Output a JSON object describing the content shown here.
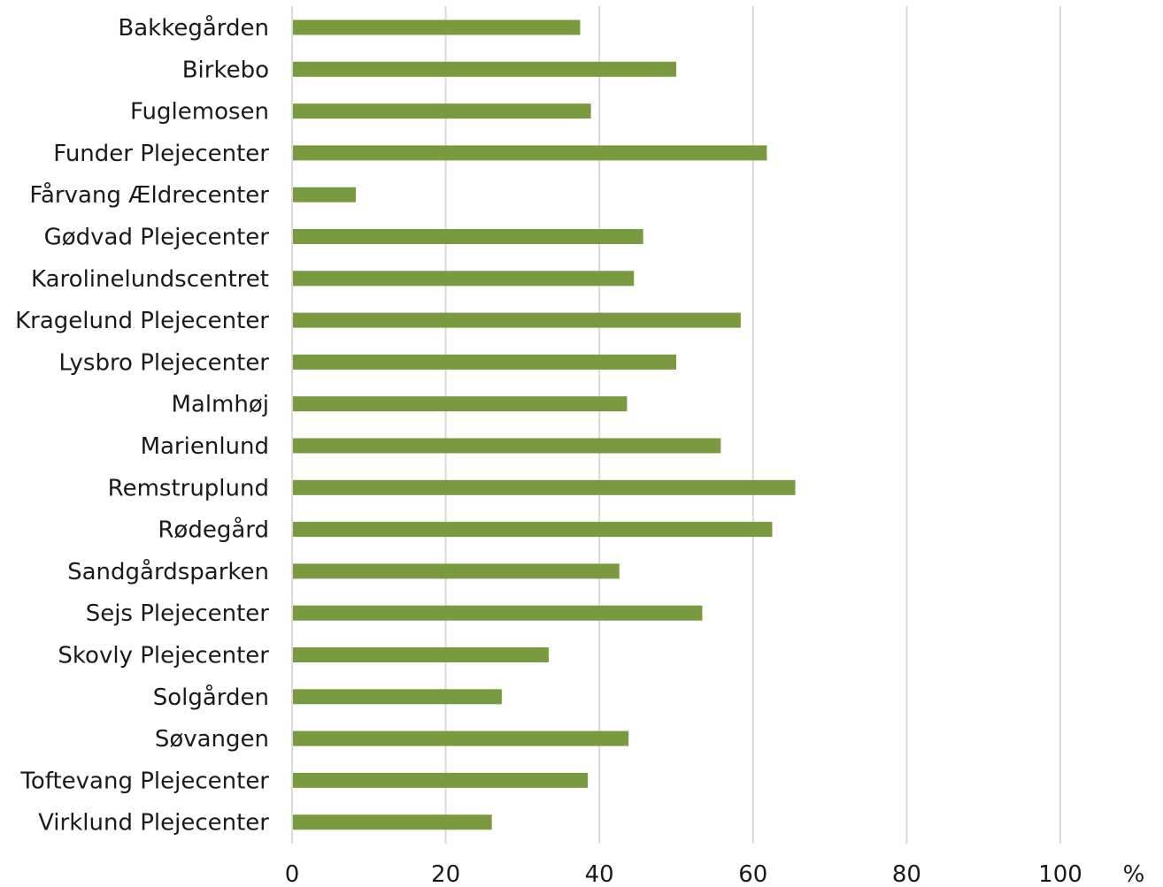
{
  "chart_data": {
    "type": "bar",
    "orientation": "horizontal",
    "categories": [
      "Bakkegården",
      "Birkebo",
      "Fuglemosen",
      "Funder Plejecenter",
      "Fårvang Ældrecenter",
      "Gødvad Plejecenter",
      "Karolinelundscentret",
      "Kragelund Plejecenter",
      "Lysbro Plejecenter",
      "Malmhøj",
      "Marienlund",
      "Remstruplund",
      "Rødegård",
      "Sandgårdsparken",
      "Sejs Plejecenter",
      "Skovly Plejecenter",
      "Solgården",
      "Søvangen",
      "Toftevang Plejecenter",
      "Virklund Plejecenter"
    ],
    "values": [
      37.5,
      50.0,
      38.9,
      61.8,
      8.3,
      45.7,
      44.5,
      58.4,
      50.0,
      43.6,
      55.8,
      65.5,
      62.5,
      42.6,
      53.4,
      33.4,
      27.3,
      43.8,
      38.5,
      26.0
    ],
    "xlim": [
      0,
      100
    ],
    "xticks": [
      0,
      20,
      40,
      60,
      80,
      100
    ],
    "unit_label": "%",
    "grid": true,
    "bar_color": "#7a9a3f",
    "grid_color": "#d9d9d9"
  }
}
